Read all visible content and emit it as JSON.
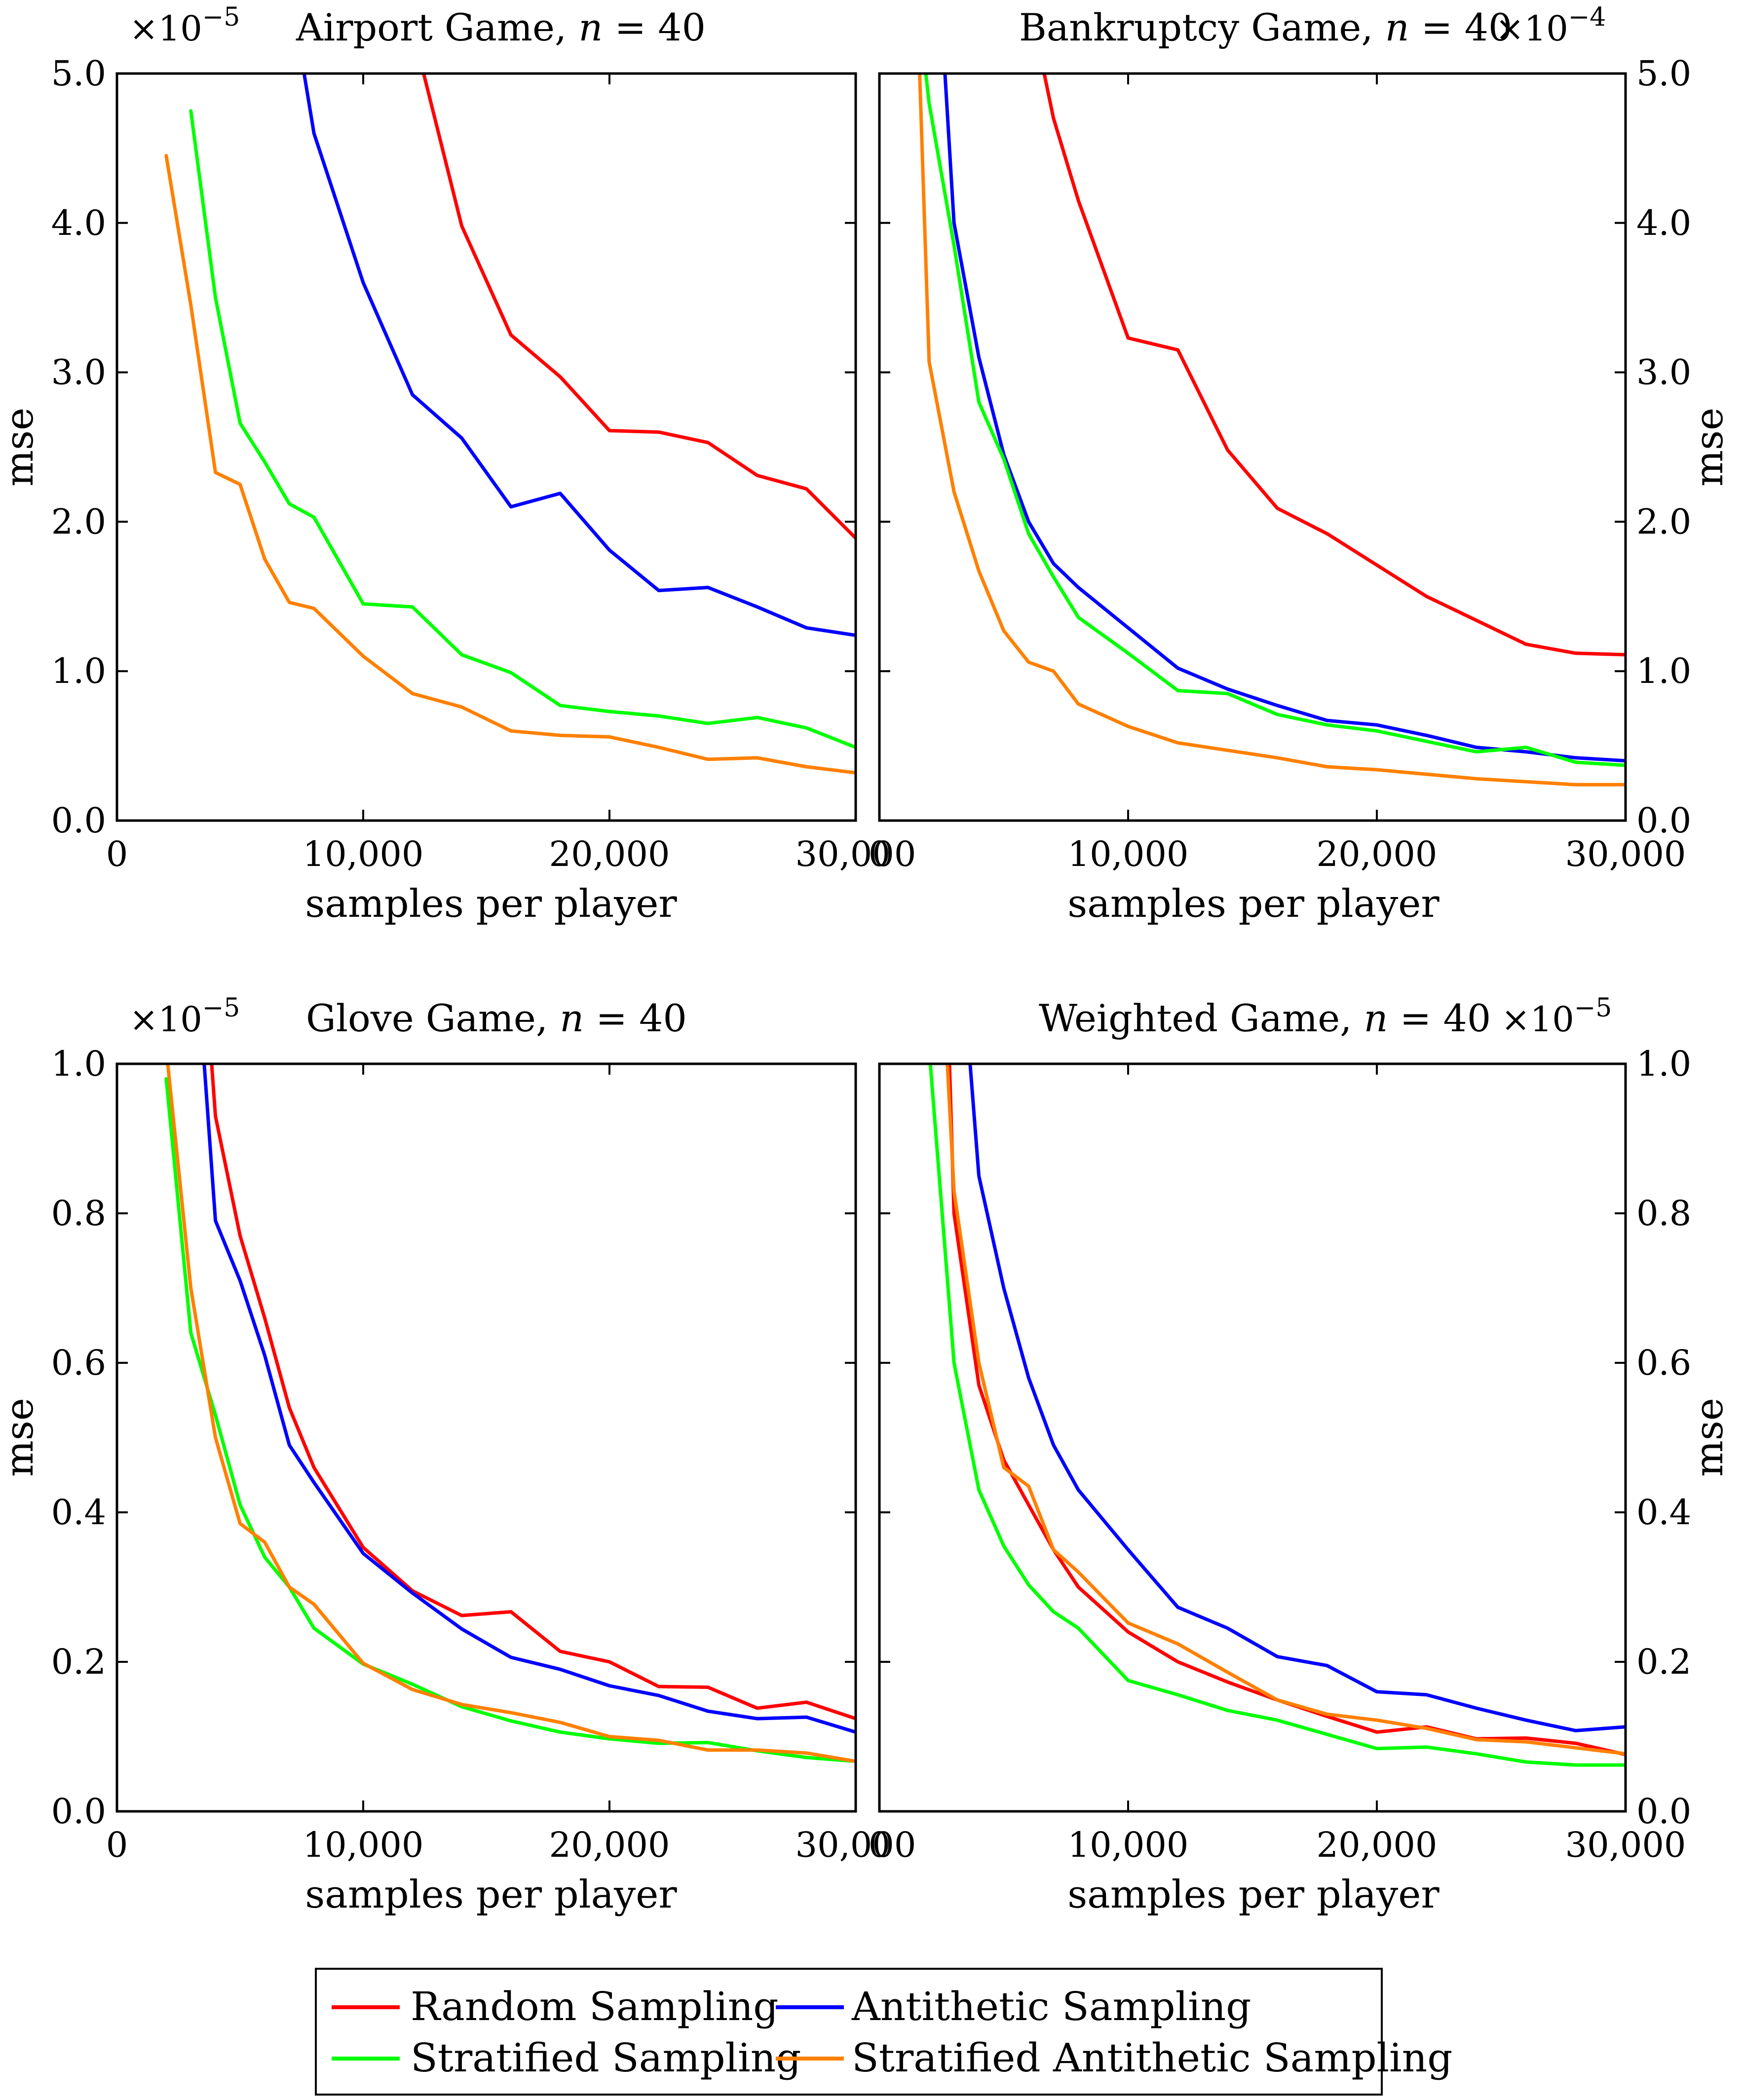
{
  "figure": {
    "legend": [
      {
        "name": "Random Sampling",
        "color": "#ff0000"
      },
      {
        "name": "Antithetic Sampling",
        "color": "#0000ff"
      },
      {
        "name": "Stratified Sampling",
        "color": "#00ff00"
      },
      {
        "name": "Stratified Antithetic Sampling",
        "color": "#ff8000"
      }
    ]
  },
  "chart_data": [
    {
      "id": "airport",
      "type": "line",
      "title": "Airport Game, n = 40",
      "title_plain": "Airport Game, ",
      "title_var": "n",
      "title_eq": " = 40",
      "multiplier": "×10",
      "multiplier_exp": "−5",
      "xlabel": "samples per player",
      "ylabel": "mse",
      "xlim": [
        0,
        30000
      ],
      "ylim": [
        0,
        5.0
      ],
      "xticks": [
        0,
        10000,
        20000,
        30000
      ],
      "xtick_labels": [
        "0",
        "10,000",
        "20,000",
        "30,000"
      ],
      "yticks": [
        0,
        1.0,
        2.0,
        3.0,
        4.0,
        5.0
      ],
      "ytick_labels": [
        "0.0",
        "1.0",
        "2.0",
        "3.0",
        "4.0",
        "5.0"
      ],
      "y_axis_side": "left",
      "series": [
        {
          "name": "Random Sampling",
          "color": "#ff0000",
          "x": [
            12000,
            14000,
            16000,
            18000,
            20000,
            22000,
            24000,
            26000,
            28000,
            30000
          ],
          "y": [
            5.3,
            3.98,
            3.25,
            2.97,
            2.61,
            2.6,
            2.53,
            2.31,
            2.22,
            1.89
          ]
        },
        {
          "name": "Antithetic Sampling",
          "color": "#0000ff",
          "x": [
            7000,
            8000,
            10000,
            12000,
            14000,
            16000,
            18000,
            20000,
            22000,
            24000,
            26000,
            28000,
            30000
          ],
          "y": [
            5.6,
            4.6,
            3.6,
            2.85,
            2.56,
            2.1,
            2.19,
            1.81,
            1.54,
            1.56,
            1.43,
            1.29,
            1.24
          ]
        },
        {
          "name": "Stratified Sampling",
          "color": "#00ff00",
          "x": [
            3000,
            4000,
            5000,
            6000,
            7000,
            8000,
            10000,
            12000,
            14000,
            16000,
            18000,
            20000,
            22000,
            24000,
            26000,
            28000,
            30000
          ],
          "y": [
            4.75,
            3.5,
            2.66,
            2.4,
            2.12,
            2.03,
            1.45,
            1.43,
            1.11,
            0.99,
            0.77,
            0.73,
            0.7,
            0.65,
            0.69,
            0.62,
            0.49
          ]
        },
        {
          "name": "Stratified Antithetic Sampling",
          "color": "#ff8000",
          "x": [
            2000,
            3000,
            4000,
            5000,
            6000,
            7000,
            8000,
            10000,
            12000,
            14000,
            16000,
            18000,
            20000,
            22000,
            24000,
            26000,
            28000,
            30000
          ],
          "y": [
            4.45,
            3.45,
            2.33,
            2.25,
            1.75,
            1.46,
            1.42,
            1.1,
            0.85,
            0.76,
            0.6,
            0.57,
            0.56,
            0.49,
            0.41,
            0.42,
            0.36,
            0.32
          ]
        }
      ]
    },
    {
      "id": "bankruptcy",
      "type": "line",
      "title": "Bankruptcy Game, n = 40",
      "title_plain": "Bankruptcy Game, ",
      "title_var": "n",
      "title_eq": " = 40",
      "multiplier": "×10",
      "multiplier_exp": "−4",
      "xlabel": "samples per player",
      "ylabel": "mse",
      "xlim": [
        0,
        30000
      ],
      "ylim": [
        0,
        5.0
      ],
      "xticks": [
        0,
        10000,
        20000,
        30000
      ],
      "xtick_labels": [
        "0",
        "10,000",
        "20,000",
        "30,000"
      ],
      "yticks": [
        0,
        1.0,
        2.0,
        3.0,
        4.0,
        5.0
      ],
      "ytick_labels": [
        "0.0",
        "1.0",
        "2.0",
        "3.0",
        "4.0",
        "5.0"
      ],
      "y_axis_side": "right",
      "series": [
        {
          "name": "Random Sampling",
          "color": "#ff0000",
          "x": [
            6500,
            7000,
            8000,
            10000,
            12000,
            14000,
            16000,
            18000,
            20000,
            22000,
            24000,
            26000,
            28000,
            30000
          ],
          "y": [
            5.1,
            4.7,
            4.15,
            3.23,
            3.15,
            2.48,
            2.09,
            1.92,
            1.71,
            1.5,
            1.34,
            1.18,
            1.12,
            1.11
          ]
        },
        {
          "name": "Antithetic Sampling",
          "color": "#0000ff",
          "x": [
            2600,
            3000,
            4000,
            5000,
            6000,
            7000,
            8000,
            10000,
            12000,
            14000,
            16000,
            18000,
            20000,
            22000,
            24000,
            26000,
            28000,
            30000
          ],
          "y": [
            5.1,
            4.0,
            3.1,
            2.45,
            2.0,
            1.72,
            1.56,
            1.29,
            1.02,
            0.88,
            0.77,
            0.67,
            0.64,
            0.57,
            0.49,
            0.46,
            0.42,
            0.4
          ]
        },
        {
          "name": "Stratified Sampling",
          "color": "#00ff00",
          "x": [
            1800,
            2000,
            3000,
            4000,
            5000,
            6000,
            7000,
            8000,
            10000,
            12000,
            14000,
            16000,
            18000,
            20000,
            22000,
            24000,
            26000,
            28000,
            30000
          ],
          "y": [
            5.1,
            4.8,
            3.85,
            2.8,
            2.42,
            1.92,
            1.63,
            1.36,
            1.12,
            0.87,
            0.85,
            0.71,
            0.64,
            0.6,
            0.53,
            0.46,
            0.49,
            0.39,
            0.37
          ]
        },
        {
          "name": "Stratified Antithetic Sampling",
          "color": "#ff8000",
          "x": [
            1600,
            2000,
            3000,
            4000,
            5000,
            6000,
            7000,
            8000,
            10000,
            12000,
            14000,
            16000,
            18000,
            20000,
            22000,
            24000,
            26000,
            28000,
            30000
          ],
          "y": [
            5.1,
            3.07,
            2.2,
            1.67,
            1.27,
            1.06,
            1.0,
            0.78,
            0.63,
            0.52,
            0.47,
            0.42,
            0.36,
            0.34,
            0.31,
            0.28,
            0.26,
            0.24,
            0.24
          ]
        }
      ]
    },
    {
      "id": "glove",
      "type": "line",
      "title": "Glove Game, n = 40",
      "title_plain": "Glove Game, ",
      "title_var": "n",
      "title_eq": " = 40",
      "multiplier": "×10",
      "multiplier_exp": "−5",
      "xlabel": "samples per player",
      "ylabel": "mse",
      "xlim": [
        0,
        30000
      ],
      "ylim": [
        0,
        1.0
      ],
      "xticks": [
        0,
        10000,
        20000,
        30000
      ],
      "xtick_labels": [
        "0",
        "10,000",
        "20,000",
        "30,000"
      ],
      "yticks": [
        0,
        0.2,
        0.4,
        0.6,
        0.8,
        1.0
      ],
      "ytick_labels": [
        "0.0",
        "0.2",
        "0.4",
        "0.6",
        "0.8",
        "1.0"
      ],
      "y_axis_side": "left",
      "series": [
        {
          "name": "Random Sampling",
          "color": "#ff0000",
          "x": [
            3800,
            4000,
            5000,
            6000,
            7000,
            8000,
            10000,
            12000,
            14000,
            16000,
            18000,
            20000,
            22000,
            24000,
            26000,
            28000,
            30000
          ],
          "y": [
            1.02,
            0.93,
            0.77,
            0.66,
            0.54,
            0.46,
            0.353,
            0.295,
            0.262,
            0.267,
            0.214,
            0.2,
            0.167,
            0.166,
            0.138,
            0.146,
            0.124
          ]
        },
        {
          "name": "Antithetic Sampling",
          "color": "#0000ff",
          "x": [
            3500,
            4000,
            5000,
            6000,
            7000,
            8000,
            10000,
            12000,
            14000,
            16000,
            18000,
            20000,
            22000,
            24000,
            26000,
            28000,
            30000
          ],
          "y": [
            1.02,
            0.79,
            0.71,
            0.61,
            0.49,
            0.44,
            0.345,
            0.292,
            0.244,
            0.206,
            0.19,
            0.168,
            0.155,
            0.134,
            0.124,
            0.126,
            0.106
          ]
        },
        {
          "name": "Stratified Sampling",
          "color": "#00ff00",
          "x": [
            2000,
            3000,
            4000,
            5000,
            6000,
            7000,
            8000,
            10000,
            12000,
            14000,
            16000,
            18000,
            20000,
            22000,
            24000,
            26000,
            28000,
            30000
          ],
          "y": [
            0.98,
            0.64,
            0.53,
            0.41,
            0.34,
            0.3,
            0.245,
            0.197,
            0.17,
            0.14,
            0.121,
            0.106,
            0.097,
            0.091,
            0.092,
            0.081,
            0.072,
            0.067
          ]
        },
        {
          "name": "Stratified Antithetic Sampling",
          "color": "#ff8000",
          "x": [
            2000,
            3000,
            4000,
            5000,
            6000,
            7000,
            8000,
            10000,
            12000,
            14000,
            16000,
            18000,
            20000,
            22000,
            24000,
            26000,
            28000,
            30000
          ],
          "y": [
            1.02,
            0.7,
            0.5,
            0.385,
            0.36,
            0.3,
            0.277,
            0.198,
            0.163,
            0.143,
            0.132,
            0.119,
            0.1,
            0.095,
            0.082,
            0.082,
            0.078,
            0.067
          ]
        }
      ]
    },
    {
      "id": "weighted",
      "type": "line",
      "title": "Weighted Game, n = 40",
      "title_plain": "Weighted Game, ",
      "title_var": "n",
      "title_eq": " = 40",
      "multiplier": "×10",
      "multiplier_exp": "−5",
      "xlabel": "samples per player",
      "ylabel": "mse",
      "xlim": [
        0,
        30000
      ],
      "ylim": [
        0,
        1.0
      ],
      "xticks": [
        0,
        10000,
        20000,
        30000
      ],
      "xtick_labels": [
        "0",
        "10,000",
        "20,000",
        "30,000"
      ],
      "yticks": [
        0,
        0.2,
        0.4,
        0.6,
        0.8,
        1.0
      ],
      "ytick_labels": [
        "0.0",
        "0.2",
        "0.4",
        "0.6",
        "0.8",
        "1.0"
      ],
      "y_axis_side": "right",
      "series": [
        {
          "name": "Random Sampling",
          "color": "#ff0000",
          "x": [
            2800,
            3000,
            4000,
            5000,
            6000,
            7000,
            8000,
            10000,
            12000,
            14000,
            16000,
            18000,
            20000,
            22000,
            24000,
            26000,
            28000,
            30000
          ],
          "y": [
            1.02,
            0.8,
            0.57,
            0.47,
            0.41,
            0.35,
            0.3,
            0.24,
            0.2,
            0.173,
            0.149,
            0.127,
            0.106,
            0.113,
            0.097,
            0.098,
            0.091,
            0.076
          ]
        },
        {
          "name": "Antithetic Sampling",
          "color": "#0000ff",
          "x": [
            3600,
            4000,
            5000,
            6000,
            7000,
            8000,
            10000,
            12000,
            14000,
            16000,
            18000,
            20000,
            22000,
            24000,
            26000,
            28000,
            30000
          ],
          "y": [
            1.02,
            0.85,
            0.7,
            0.58,
            0.49,
            0.43,
            0.35,
            0.273,
            0.245,
            0.207,
            0.195,
            0.16,
            0.156,
            0.138,
            0.122,
            0.108,
            0.113
          ]
        },
        {
          "name": "Stratified Sampling",
          "color": "#00ff00",
          "x": [
            2000,
            3000,
            4000,
            5000,
            6000,
            7000,
            8000,
            10000,
            12000,
            14000,
            16000,
            18000,
            20000,
            22000,
            24000,
            26000,
            28000,
            30000
          ],
          "y": [
            1.02,
            0.6,
            0.43,
            0.355,
            0.303,
            0.267,
            0.245,
            0.175,
            0.156,
            0.135,
            0.122,
            0.103,
            0.084,
            0.086,
            0.077,
            0.066,
            0.062,
            0.062
          ]
        },
        {
          "name": "Stratified Antithetic Sampling",
          "color": "#ff8000",
          "x": [
            2700,
            3000,
            4000,
            5000,
            6000,
            7000,
            8000,
            10000,
            12000,
            14000,
            16000,
            18000,
            20000,
            22000,
            24000,
            26000,
            28000,
            30000
          ],
          "y": [
            1.02,
            0.83,
            0.6,
            0.46,
            0.435,
            0.35,
            0.32,
            0.252,
            0.224,
            0.186,
            0.149,
            0.13,
            0.122,
            0.111,
            0.096,
            0.093,
            0.085,
            0.077
          ]
        }
      ]
    }
  ]
}
